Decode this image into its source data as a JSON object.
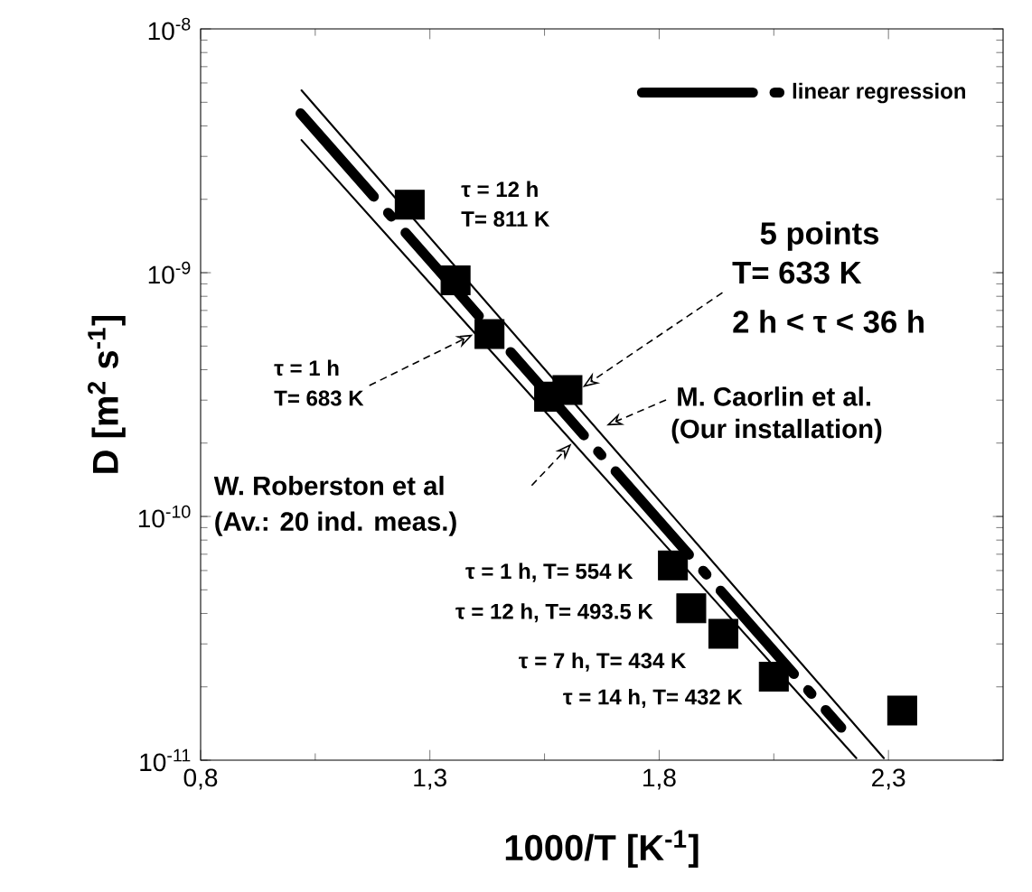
{
  "chart_data": {
    "type": "scatter",
    "xlabel": "1000/T   [K$^{-1}$]",
    "ylabel": "D [m$^{2}$ s$^{-1}$]",
    "log": "y",
    "xlim": [
      0.8,
      2.55
    ],
    "ylim": [
      1e-11,
      1e-08
    ],
    "xticks": [
      {
        "value": 0.8,
        "label": "0,8"
      },
      {
        "value": 1.3,
        "label": "1,3"
      },
      {
        "value": 1.8,
        "label": "1,8"
      },
      {
        "value": 2.3,
        "label": "2,3"
      }
    ],
    "yticks": [
      {
        "value": 1e-11,
        "label": "10$^{-11}$"
      },
      {
        "value": 1e-10,
        "label": "10$^{-10}$"
      },
      {
        "value": 1e-09,
        "label": "10$^{-9}$"
      },
      {
        "value": 1e-08,
        "label": "10$^{-8}$"
      }
    ],
    "legend": "top right",
    "grid": false,
    "series": [
      {
        "name": "linear regression",
        "type": "line",
        "line_style": "dashed",
        "color": "#000000",
        "x": [
          1.018,
          2.197
        ],
        "values": [
          4.5e-09,
          1.36e-11
        ]
      },
      {
        "type": "line",
        "line_style": "solid",
        "color": "#000000",
        "x": [
          1.02,
          2.29
        ],
        "values": [
          5.6e-09,
          1.02e-11
        ]
      },
      {
        "type": "line",
        "line_style": "solid",
        "color": "#000000",
        "x": [
          1.02,
          2.23
        ],
        "values": [
          3.5e-09,
          1.02e-11
        ]
      },
      {
        "marker": "square",
        "color": "#000000",
        "x": [
          1.256,
          1.356,
          1.43,
          1.56,
          1.6,
          1.83,
          1.87,
          1.94,
          2.05,
          2.33
        ],
        "values": [
          1.9e-09,
          9.3e-10,
          5.6e-10,
          3.1e-10,
          3.3e-10,
          6.3e-11,
          4.2e-11,
          3.3e-11,
          2.2e-11,
          1.6e-11
        ]
      }
    ],
    "annotations": [
      "τ = 12 h",
      "T= 811 K",
      "5 points",
      "T= 633 K",
      "2 h < τ < 36 h",
      "τ = 1 h",
      "T= 683 K",
      "M. Caorlin et al.",
      "(Our installation)",
      "W. Roberston et al",
      "(Av.: 20 ind. meas.)",
      "τ = 1 h, T= 554 K",
      "τ = 12 h, T= 493.5 K",
      "τ = 7 h, T= 434 K",
      "τ = 14  h, T= 432 K"
    ]
  }
}
